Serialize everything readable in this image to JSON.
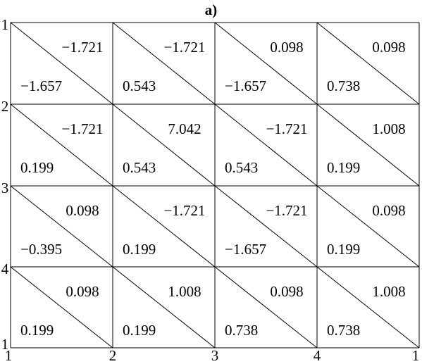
{
  "title": "a)",
  "row_labels": [
    "1",
    "2",
    "3",
    "4",
    "1"
  ],
  "col_labels": [
    "1",
    "2",
    "3",
    "4",
    "1"
  ],
  "cells": [
    [
      {
        "upper": "−1.721",
        "lower": "−1.657"
      },
      {
        "upper": "−1.721",
        "lower": "0.543"
      },
      {
        "upper": "0.098",
        "lower": "−1.657"
      },
      {
        "upper": "0.098",
        "lower": "0.738"
      }
    ],
    [
      {
        "upper": "−1.721",
        "lower": "0.199"
      },
      {
        "upper": "7.042",
        "lower": "0.543"
      },
      {
        "upper": "−1.721",
        "lower": "0.543"
      },
      {
        "upper": "1.008",
        "lower": "0.199"
      }
    ],
    [
      {
        "upper": "0.098",
        "lower": "−0.395"
      },
      {
        "upper": "−1.721",
        "lower": "0.199"
      },
      {
        "upper": "−1.721",
        "lower": "−1.657"
      },
      {
        "upper": "0.098",
        "lower": "0.199"
      }
    ],
    [
      {
        "upper": "0.098",
        "lower": "0.199"
      },
      {
        "upper": "1.008",
        "lower": "0.199"
      },
      {
        "upper": "0.098",
        "lower": "0.738"
      },
      {
        "upper": "1.008",
        "lower": "0.738"
      }
    ]
  ]
}
